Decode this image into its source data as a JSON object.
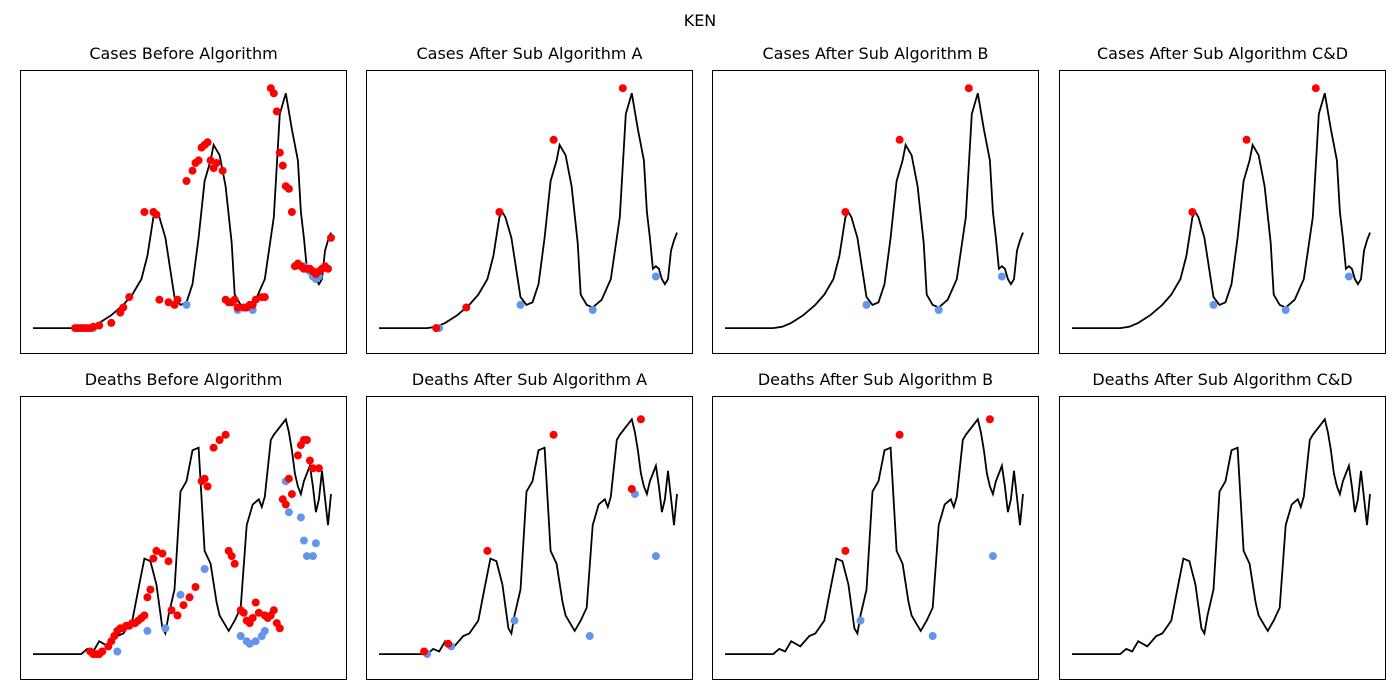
{
  "figure": {
    "title": "KEN"
  },
  "colors": {
    "line": "#000000",
    "peak": "#ff0000",
    "trough": "#6495ed"
  },
  "chart_data": [
    {
      "type": "line",
      "title": "Cases Before Algorithm",
      "xlabel": "",
      "ylabel": "",
      "ticks": "none",
      "xlim": [
        0,
        100
      ],
      "ylim": [
        0,
        100
      ],
      "x": [
        0,
        14,
        16,
        19,
        22,
        26,
        30,
        33,
        36,
        38,
        40,
        41,
        42,
        44,
        47,
        49,
        51,
        53,
        55,
        57,
        59,
        60,
        62,
        64,
        66,
        67,
        69,
        71,
        72,
        74,
        77,
        80,
        82,
        84,
        86,
        88,
        89,
        90,
        91,
        92,
        93,
        94,
        95,
        96,
        97,
        98,
        99
      ],
      "values": [
        5,
        5,
        5,
        5.5,
        7,
        10,
        14,
        18,
        24,
        33,
        48,
        50,
        48,
        40,
        17,
        14,
        15,
        22,
        40,
        62,
        70,
        76,
        72,
        60,
        38,
        18,
        14,
        13,
        14,
        16,
        24,
        48,
        88,
        96,
        82,
        70,
        50,
        40,
        28,
        29,
        28,
        24,
        22,
        24,
        35,
        39,
        42
      ],
      "peaks": {
        "x": [
          14,
          15,
          16,
          17,
          18,
          19,
          20,
          22,
          26,
          29,
          30,
          32,
          37,
          40,
          41,
          42,
          45,
          47,
          48,
          51,
          53,
          54,
          55,
          56,
          57,
          58,
          59,
          60,
          61,
          63,
          64,
          65,
          66,
          67,
          68,
          70,
          71,
          72,
          73,
          74,
          76,
          77,
          79,
          80,
          81,
          82,
          83,
          84,
          85,
          86,
          87,
          88,
          89,
          90,
          91,
          92,
          93,
          94,
          95,
          96,
          97,
          98,
          99
        ],
        "values": [
          5,
          5,
          5,
          5,
          5,
          5,
          5.5,
          6,
          7,
          11,
          13,
          17,
          50,
          50,
          49,
          16,
          15,
          14,
          16,
          62,
          66,
          69,
          70,
          75,
          76,
          77,
          70,
          67,
          69,
          66,
          16,
          15,
          15,
          16,
          13,
          13,
          13,
          14,
          14,
          16,
          17,
          17,
          98,
          96,
          89,
          73,
          68,
          60,
          59,
          50,
          29,
          30,
          29,
          28,
          28,
          28,
          27,
          26,
          27,
          28,
          29,
          28,
          40
        ],
        "note": "dense red markers"
      },
      "troughs": {
        "x": [
          20,
          41,
          51,
          68,
          73,
          90,
          91,
          92,
          93,
          94,
          95
        ],
        "values": [
          5,
          49,
          14,
          12,
          12,
          29,
          28,
          27,
          25,
          24,
          25
        ]
      }
    },
    {
      "type": "line",
      "title": "Cases After Sub Algorithm A",
      "xlabel": "",
      "ylabel": "",
      "ticks": "none",
      "xlim": [
        0,
        100
      ],
      "ylim": [
        0,
        100
      ],
      "peaks": {
        "x": [
          19,
          29,
          40,
          58,
          81
        ],
        "values": [
          5,
          13,
          50,
          78,
          98
        ]
      },
      "troughs": {
        "x": [
          20,
          47,
          71,
          92
        ],
        "values": [
          5,
          14,
          12,
          25
        ]
      }
    },
    {
      "type": "line",
      "title": "Cases After Sub Algorithm B",
      "xlabel": "",
      "ylabel": "",
      "ticks": "none",
      "xlim": [
        0,
        100
      ],
      "ylim": [
        0,
        100
      ],
      "peaks": {
        "x": [
          40,
          58,
          81
        ],
        "values": [
          50,
          78,
          98
        ]
      },
      "troughs": {
        "x": [
          47,
          71,
          92
        ],
        "values": [
          14,
          12,
          25
        ]
      }
    },
    {
      "type": "line",
      "title": "Cases After Sub Algorithm C&D",
      "xlabel": "",
      "ylabel": "",
      "ticks": "none",
      "xlim": [
        0,
        100
      ],
      "ylim": [
        0,
        100
      ],
      "peaks": {
        "x": [
          40,
          58,
          81
        ],
        "values": [
          50,
          78,
          98
        ]
      },
      "troughs": {
        "x": [
          47,
          71,
          92
        ],
        "values": [
          14,
          12,
          25
        ]
      }
    },
    {
      "type": "line",
      "title": "Deaths Before Algorithm",
      "xlabel": "",
      "ylabel": "",
      "ticks": "none",
      "xlim": [
        0,
        100
      ],
      "ylim": [
        0,
        100
      ],
      "x": [
        0,
        16,
        18,
        20,
        22,
        25,
        28,
        30,
        33,
        35,
        37,
        39,
        41,
        43,
        44,
        45,
        47,
        49,
        51,
        53,
        55,
        57,
        59,
        61,
        62,
        63,
        65,
        67,
        69,
        71,
        73,
        75,
        76,
        77,
        79,
        80,
        82,
        84,
        85,
        86,
        87,
        88,
        89,
        90,
        91,
        92,
        93,
        94,
        95,
        96,
        98,
        99
      ],
      "values": [
        5,
        5,
        7,
        6,
        10,
        8,
        12,
        13,
        18,
        30,
        42,
        41,
        32,
        15,
        13,
        20,
        30,
        68,
        72,
        84,
        85,
        45,
        40,
        25,
        20,
        18,
        14,
        18,
        23,
        55,
        63,
        65,
        62,
        66,
        88,
        90,
        93,
        96,
        91,
        84,
        75,
        70,
        67,
        72,
        75,
        78,
        70,
        60,
        65,
        76,
        55,
        67
      ],
      "peaks": {
        "x": [
          19,
          20,
          21,
          22,
          23,
          25,
          26,
          27,
          28,
          29,
          30,
          31,
          32,
          33,
          34,
          35,
          36,
          37,
          38,
          39,
          40,
          41,
          43,
          45,
          46,
          48,
          50,
          52,
          54,
          56,
          57,
          58,
          60,
          62,
          64,
          65,
          66,
          67,
          69,
          70,
          71,
          72,
          73,
          74,
          75,
          77,
          78,
          79,
          80,
          81,
          82,
          83,
          84,
          85,
          86,
          88,
          89,
          90,
          91,
          92,
          93,
          95
        ],
        "values": [
          6,
          5,
          5,
          5,
          6,
          8,
          10,
          12,
          14,
          15,
          15,
          16,
          16,
          17,
          17,
          18,
          19,
          20,
          27,
          30,
          42,
          45,
          44,
          41,
          22,
          20,
          24,
          27,
          31,
          72,
          73,
          70,
          85,
          88,
          90,
          45,
          43,
          40,
          22,
          21,
          18,
          17,
          19,
          25,
          21,
          20,
          19,
          20,
          22,
          17,
          15,
          65,
          63,
          73,
          67,
          82,
          86,
          88,
          88,
          80,
          77,
          77
        ],
        "note": "dense red markers"
      },
      "troughs": {
        "x": [
          20,
          22,
          28,
          38,
          44,
          49,
          57,
          69,
          71,
          72,
          74,
          76,
          77,
          84,
          85,
          89,
          90,
          91,
          93,
          94
        ],
        "values": [
          5,
          5,
          6,
          14,
          15,
          28,
          38,
          12,
          10,
          9,
          10,
          12,
          14,
          72,
          60,
          58,
          49,
          43,
          43,
          48
        ]
      }
    },
    {
      "type": "line",
      "title": "Deaths After Sub Algorithm A",
      "xlabel": "",
      "ylabel": "",
      "ticks": "none",
      "xlim": [
        0,
        100
      ],
      "ylim": [
        0,
        100
      ],
      "peaks": {
        "x": [
          15,
          23,
          36,
          58,
          84,
          87
        ],
        "values": [
          6,
          9,
          45,
          90,
          69,
          96
        ]
      },
      "troughs": {
        "x": [
          16,
          24,
          45,
          70,
          85,
          92
        ],
        "values": [
          5,
          8,
          18,
          12,
          67,
          43
        ]
      }
    },
    {
      "type": "line",
      "title": "Deaths After Sub Algorithm B",
      "xlabel": "",
      "ylabel": "",
      "ticks": "none",
      "xlim": [
        0,
        100
      ],
      "ylim": [
        0,
        100
      ],
      "peaks": {
        "x": [
          40,
          58,
          88
        ],
        "values": [
          45,
          90,
          96
        ]
      },
      "troughs": {
        "x": [
          45,
          69,
          89
        ],
        "values": [
          18,
          12,
          43
        ]
      }
    },
    {
      "type": "line",
      "title": "Deaths After Sub Algorithm C&D",
      "xlabel": "",
      "ylabel": "",
      "ticks": "none",
      "xlim": [
        0,
        100
      ],
      "ylim": [
        0,
        100
      ],
      "peaks": {
        "x": [],
        "values": []
      },
      "troughs": {
        "x": [],
        "values": []
      }
    }
  ]
}
